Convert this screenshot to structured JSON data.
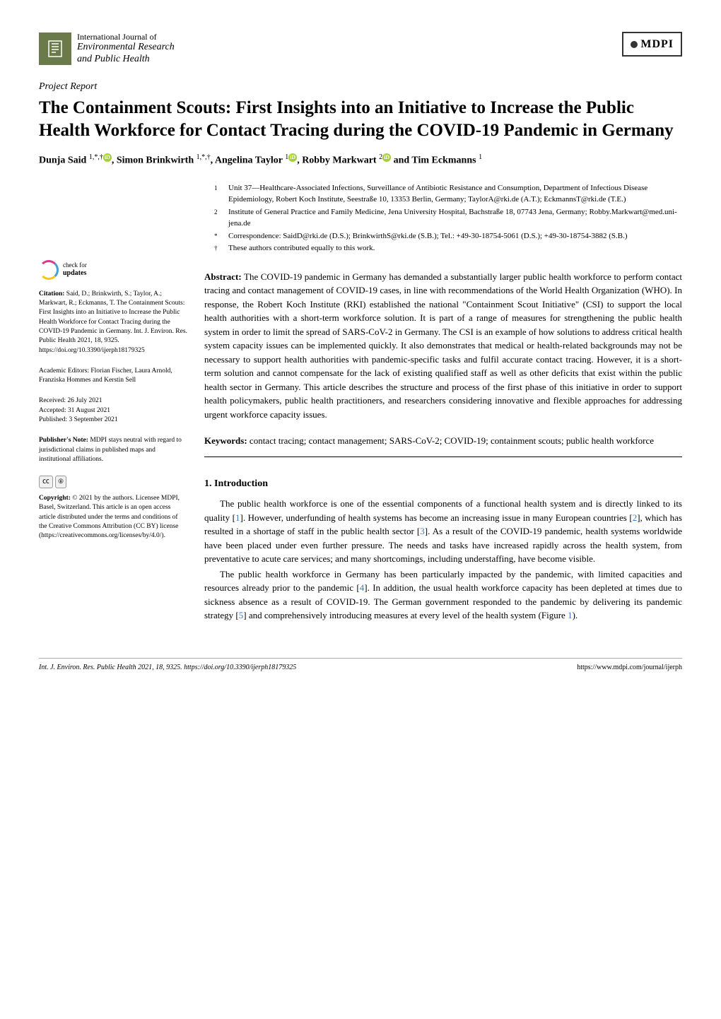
{
  "header": {
    "journal_line1": "International Journal of",
    "journal_line2": "Environmental Research",
    "journal_line3": "and Public Health",
    "publisher": "MDPI"
  },
  "article_type": "Project Report",
  "title": "The Containment Scouts: First Insights into an Initiative to Increase the Public Health Workforce for Contact Tracing during the COVID-19 Pandemic in Germany",
  "authors_html": "Dunja Said <sup>1,*,†</sup><span class='orcid'>iD</span>, Simon Brinkwirth <sup>1,*,†</sup>, Angelina Taylor <sup>1</sup><span class='orcid'>iD</span>, Robby Markwart <sup>2</sup><span class='orcid'>iD</span> and Tim Eckmanns <sup>1</sup>",
  "affiliations": [
    {
      "num": "1",
      "text": "Unit 37—Healthcare-Associated Infections, Surveillance of Antibiotic Resistance and Consumption, Department of Infectious Disease Epidemiology, Robert Koch Institute, Seestraße 10, 13353 Berlin, Germany; TaylorA@rki.de (A.T.); EckmannsT@rki.de (T.E.)"
    },
    {
      "num": "2",
      "text": "Institute of General Practice and Family Medicine, Jena University Hospital, Bachstraße 18, 07743 Jena, Germany; Robby.Markwart@med.uni-jena.de"
    },
    {
      "num": "*",
      "text": "Correspondence: SaidD@rki.de (D.S.); BrinkwirthS@rki.de (S.B.); Tel.: +49-30-18754-5061 (D.S.); +49-30-18754-3882 (S.B.)"
    },
    {
      "num": "†",
      "text": "These authors contributed equally to this work."
    }
  ],
  "sidebar": {
    "check_label": "check for",
    "check_bold": "updates",
    "citation_label": "Citation:",
    "citation": "Said, D.; Brinkwirth, S.; Taylor, A.; Markwart, R.; Eckmanns, T. The Containment Scouts: First Insights into an Initiative to Increase the Public Health Workforce for Contact Tracing during the COVID-19 Pandemic in Germany. Int. J. Environ. Res. Public Health 2021, 18, 9325. https://doi.org/10.3390/ijerph18179325",
    "editors_label": "Academic Editors:",
    "editors": "Florian Fischer, Laura Arnold, Franziska Hommes and Kerstin Sell",
    "received": "Received: 26 July 2021",
    "accepted": "Accepted: 31 August 2021",
    "published": "Published: 3 September 2021",
    "pubnote_label": "Publisher's Note:",
    "pubnote": "MDPI stays neutral with regard to jurisdictional claims in published maps and institutional affiliations.",
    "copyright_label": "Copyright:",
    "copyright": "© 2021 by the authors. Licensee MDPI, Basel, Switzerland. This article is an open access article distributed under the terms and conditions of the Creative Commons Attribution (CC BY) license (https://creativecommons.org/licenses/by/4.0/)."
  },
  "abstract_label": "Abstract:",
  "abstract": "The COVID-19 pandemic in Germany has demanded a substantially larger public health workforce to perform contact tracing and contact management of COVID-19 cases, in line with recommendations of the World Health Organization (WHO). In response, the Robert Koch Institute (RKI) established the national \"Containment Scout Initiative\" (CSI) to support the local health authorities with a short-term workforce solution. It is part of a range of measures for strengthening the public health system in order to limit the spread of SARS-CoV-2 in Germany. The CSI is an example of how solutions to address critical health system capacity issues can be implemented quickly. It also demonstrates that medical or health-related backgrounds may not be necessary to support health authorities with pandemic-specific tasks and fulfil accurate contact tracing. However, it is a short-term solution and cannot compensate for the lack of existing qualified staff as well as other deficits that exist within the public health sector in Germany. This article describes the structure and process of the first phase of this initiative in order to support health policymakers, public health practitioners, and researchers considering innovative and flexible approaches for addressing urgent workforce capacity issues.",
  "keywords_label": "Keywords:",
  "keywords": "contact tracing; contact management; SARS-CoV-2; COVID-19; containment scouts; public health workforce",
  "section1_heading": "1. Introduction",
  "para1": "The public health workforce is one of the essential components of a functional health system and is directly linked to its quality [1]. However, underfunding of health systems has become an increasing issue in many European countries [2], which has resulted in a shortage of staff in the public health sector [3]. As a result of the COVID-19 pandemic, health systems worldwide have been placed under even further pressure. The needs and tasks have increased rapidly across the health system, from preventative to acute care services; and many shortcomings, including understaffing, have become visible.",
  "para2": "The public health workforce in Germany has been particularly impacted by the pandemic, with limited capacities and resources already prior to the pandemic [4]. In addition, the usual health workforce capacity has been depleted at times due to sickness absence as a result of COVID-19. The German government responded to the pandemic by delivering its pandemic strategy [5] and comprehensively introducing measures at every level of the health system (Figure 1).",
  "footer": {
    "left": "Int. J. Environ. Res. Public Health 2021, 18, 9325. https://doi.org/10.3390/ijerph18179325",
    "right": "https://www.mdpi.com/journal/ijerph"
  },
  "colors": {
    "cite": "#3b7bbf",
    "logo_bg": "#6b7a4a",
    "orcid_bg": "#a6ce39"
  }
}
